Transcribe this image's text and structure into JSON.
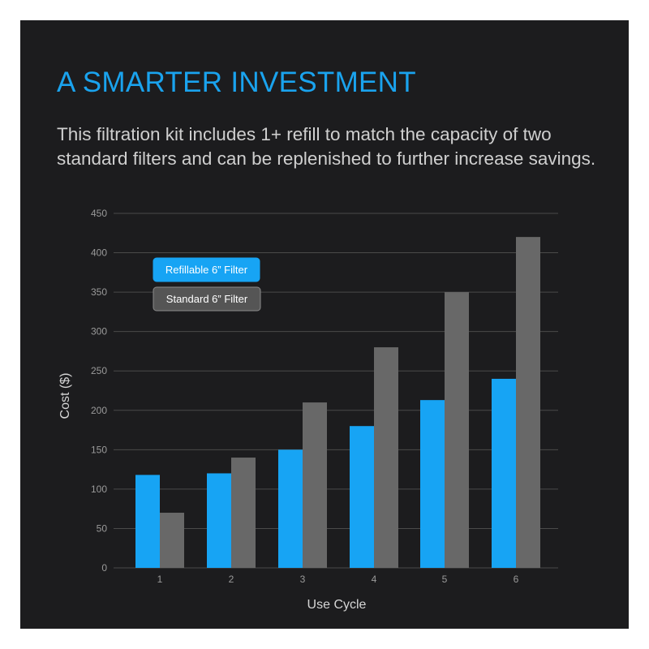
{
  "header": {
    "title": "A SMARTER INVESTMENT",
    "description": "This filtration kit includes 1+ refill to match the capacity of two standard filters and can be replenished to further increase savings."
  },
  "colors": {
    "background": "#1c1c1e",
    "title": "#1aa3ee",
    "refillable": "#17a4f4",
    "standard": "#686868",
    "grid": "#4a4a4a"
  },
  "chart_data": {
    "type": "bar",
    "categories": [
      "1",
      "2",
      "3",
      "4",
      "5",
      "6"
    ],
    "series": [
      {
        "name": "Refillable 6” Filter",
        "values": [
          118,
          120,
          150,
          180,
          213,
          240
        ]
      },
      {
        "name": "Standard 6” Filter",
        "values": [
          70,
          140,
          210,
          280,
          350,
          420
        ]
      }
    ],
    "xlabel": "Use Cycle",
    "ylabel": "Cost ($)",
    "ylim": [
      0,
      450
    ],
    "yticks": [
      0,
      50,
      100,
      150,
      200,
      250,
      300,
      350,
      400,
      450
    ],
    "grid": true,
    "legend_position": "top-left"
  }
}
